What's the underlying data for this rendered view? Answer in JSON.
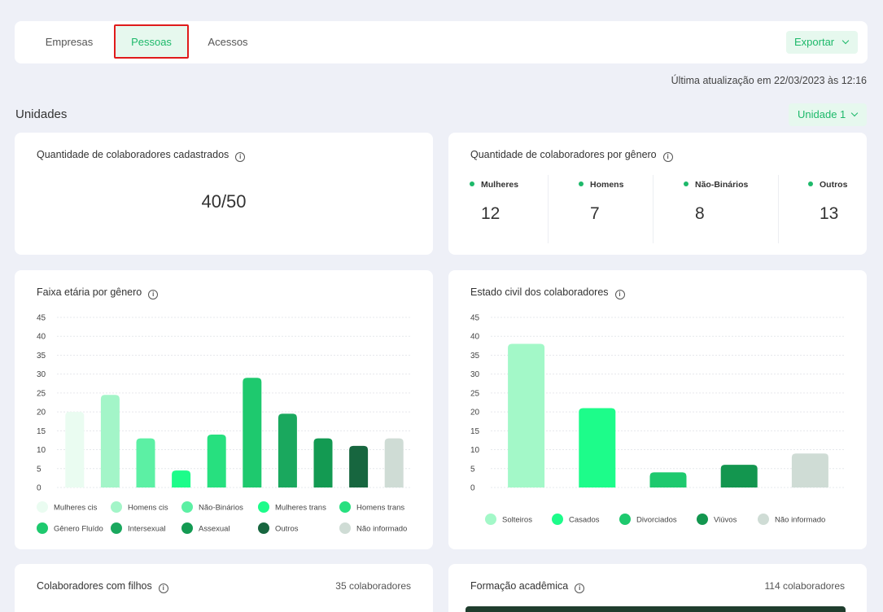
{
  "tabs": [
    {
      "label": "Empresas",
      "active": false
    },
    {
      "label": "Pessoas",
      "active": true
    },
    {
      "label": "Acessos",
      "active": false
    }
  ],
  "export_label": "Exportar",
  "last_update": "Última atualização em 22/03/2023 às 12:16",
  "section_title": "Unidades",
  "unit_selector": "Unidade 1",
  "registered": {
    "title": "Quantidade de colaboradores cadastrados",
    "value": "40/50"
  },
  "gender": {
    "title": "Quantidade de colaboradores por gênero",
    "items": [
      {
        "label": "Mulheres",
        "value": "12"
      },
      {
        "label": "Homens",
        "value": "7"
      },
      {
        "label": "Não-Binários",
        "value": "8"
      },
      {
        "label": "Outros",
        "value": "13"
      }
    ]
  },
  "colors": {
    "accent": "#1db96a",
    "accent_bg": "#e6f8ee",
    "highlight": "#e01b1b"
  },
  "chart_data": [
    {
      "type": "bar",
      "title": "Faixa etária por gênero",
      "ylim": [
        0,
        45
      ],
      "yticks": [
        0,
        5,
        10,
        15,
        20,
        25,
        30,
        35,
        40,
        45
      ],
      "grid": true,
      "legend_position": "bottom",
      "categories": [
        "Mulheres cis",
        "Homens cis",
        "Não-Binários",
        "Mulheres trans",
        "Homens trans",
        "Gênero Fluído",
        "Intersexual",
        "Assexual",
        "Outros",
        "Não informado"
      ],
      "values": [
        20,
        24.5,
        13,
        4.5,
        14,
        29,
        19.5,
        13,
        11,
        13
      ],
      "colors": [
        "#eafcf1",
        "#a3f5c8",
        "#5cf0a4",
        "#1dfc8a",
        "#27e07f",
        "#1ec96e",
        "#1aa85e",
        "#139a52",
        "#17663f",
        "#cfdcd5"
      ]
    },
    {
      "type": "bar",
      "title": "Estado civil dos colaboradores",
      "ylim": [
        0,
        45
      ],
      "yticks": [
        0,
        5,
        10,
        15,
        20,
        25,
        30,
        35,
        40,
        45
      ],
      "grid": true,
      "legend_position": "bottom",
      "categories": [
        "Solteiros",
        "Casados",
        "Divorciados",
        "Viúvos",
        "Não informado"
      ],
      "values": [
        38,
        21,
        4,
        6,
        9
      ],
      "colors": [
        "#a3f8c8",
        "#1dfc8a",
        "#1ec96e",
        "#13964f",
        "#cfdcd5"
      ]
    }
  ],
  "children": {
    "title": "Colaboradores com filhos",
    "count": "35 colaboradores"
  },
  "education": {
    "title": "Formação acadêmica",
    "count": "114 colaboradores"
  },
  "icons": {
    "info": "info-icon",
    "chevron": "chevron-down-icon"
  }
}
